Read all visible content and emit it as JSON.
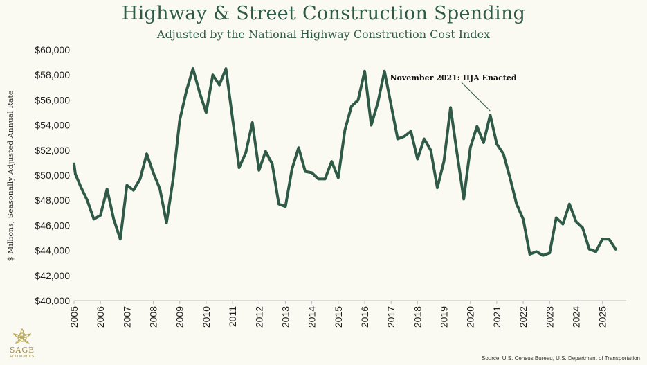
{
  "chart_data": {
    "type": "line",
    "title": "Highway & Street Construction Spending",
    "subtitle": "Adjusted by the National Highway Construction Cost Index",
    "ylabel": "$ Millions, Seasonally Adjusted Annual Rate",
    "xlabel": "",
    "ylim": [
      40000,
      60000
    ],
    "yticks": [
      40000,
      42000,
      44000,
      46000,
      48000,
      50000,
      52000,
      54000,
      56000,
      58000,
      60000
    ],
    "ytick_labels": [
      "$40,000",
      "$42,000",
      "$44,000",
      "$46,000",
      "$48,000",
      "$50,000",
      "$52,000",
      "$54,000",
      "$56,000",
      "$58,000",
      "$60,000"
    ],
    "xlim": [
      2005,
      2025.9
    ],
    "xtick_labels": [
      "2005",
      "2006",
      "2007",
      "2008",
      "2009",
      "2010",
      "2011",
      "2012",
      "2013",
      "2014",
      "2015",
      "2016",
      "2017",
      "2018",
      "2019",
      "2020",
      "2021",
      "2022",
      "2023",
      "2024",
      "2025"
    ],
    "grid": false,
    "line_color": "#2f5a48",
    "series": [
      {
        "name": "",
        "x": [
          2005.0,
          2005.05,
          2005.25,
          2005.5,
          2005.75,
          2006.0,
          2006.25,
          2006.5,
          2006.75,
          2007.0,
          2007.25,
          2007.5,
          2007.75,
          2008.0,
          2008.25,
          2008.5,
          2008.75,
          2009.0,
          2009.25,
          2009.5,
          2009.75,
          2010.0,
          2010.25,
          2010.5,
          2010.75,
          2011.0,
          2011.25,
          2011.5,
          2011.75,
          2012.0,
          2012.25,
          2012.5,
          2012.75,
          2013.0,
          2013.25,
          2013.5,
          2013.75,
          2014.0,
          2014.25,
          2014.5,
          2014.75,
          2015.0,
          2015.25,
          2015.5,
          2015.75,
          2016.0,
          2016.25,
          2016.5,
          2016.75,
          2017.0,
          2017.25,
          2017.5,
          2017.75,
          2018.0,
          2018.25,
          2018.5,
          2018.75,
          2019.0,
          2019.25,
          2019.5,
          2019.75,
          2020.0,
          2020.25,
          2020.5,
          2020.75,
          2021.0,
          2021.25,
          2021.5,
          2021.75,
          2022.0,
          2022.25,
          2022.5,
          2022.75,
          2023.0,
          2023.25,
          2023.5,
          2023.75,
          2024.0,
          2024.25,
          2024.5,
          2024.75,
          2025.0,
          2025.25,
          2025.5
        ],
        "values": [
          50900,
          50100,
          49100,
          48000,
          46500,
          46800,
          48900,
          46500,
          44900,
          49200,
          48800,
          49700,
          51700,
          50200,
          48900,
          46200,
          49700,
          54400,
          56700,
          58500,
          56600,
          55000,
          58000,
          57200,
          58500,
          54500,
          50600,
          51800,
          54200,
          50400,
          51900,
          50900,
          47700,
          47500,
          50500,
          52200,
          50300,
          50200,
          49700,
          49700,
          51100,
          49800,
          53600,
          55500,
          56000,
          58300,
          54000,
          55800,
          58300,
          55600,
          52900,
          53100,
          53500,
          51300,
          52900,
          52000,
          49000,
          51100,
          55400,
          51700,
          48100,
          52200,
          53900,
          52600,
          54800,
          52500,
          51700,
          49800,
          47700,
          46500,
          43700,
          43900,
          43600,
          43800,
          46600,
          46100,
          47700,
          46300,
          45800,
          44100,
          43900,
          44900,
          44900,
          44100
        ]
      }
    ],
    "annotations": [
      {
        "text": "November 2021: IIJA Enacted",
        "x": 2020.75,
        "y": 54800
      }
    ],
    "source": "Source: U.S. Census Bureau, U.S. Department of Transportation"
  },
  "logo": {
    "name": "SAGE",
    "tagline": "ECONOMICS"
  }
}
